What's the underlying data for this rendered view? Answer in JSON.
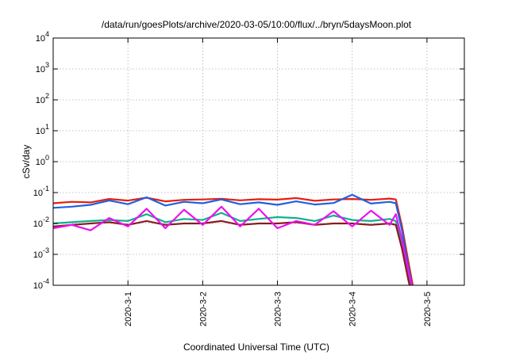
{
  "chart_data": {
    "type": "line",
    "title": "/data/run/goesPlots/archive/2020-03-05/10:00/flux/../bryn/5daysMoon.plot",
    "xlabel": "Coordinated Universal Time (UTC)",
    "ylabel": "cSv/day",
    "yscale": "log",
    "ylim": [
      0.0001,
      10000
    ],
    "xlim": [
      "2020-02-29 00:00",
      "2020-03-05 12:00"
    ],
    "x_ticks": [
      "2020-3-1",
      "2020-3-2",
      "2020-3-3",
      "2020-3-4",
      "2020-3-5"
    ],
    "y_ticks": [
      {
        "base": "10",
        "exp": "4"
      },
      {
        "base": "10",
        "exp": "3"
      },
      {
        "base": "10",
        "exp": "2"
      },
      {
        "base": "10",
        "exp": "1"
      },
      {
        "base": "10",
        "exp": "0"
      },
      {
        "base": "10",
        "exp": "-1"
      },
      {
        "base": "10",
        "exp": "-2"
      },
      {
        "base": "10",
        "exp": "-3"
      },
      {
        "base": "10",
        "exp": "-4"
      }
    ],
    "grid": true,
    "x": [
      "2020-02-29 00:00",
      "2020-02-29 06:00",
      "2020-02-29 12:00",
      "2020-02-29 18:00",
      "2020-03-01 00:00",
      "2020-03-01 06:00",
      "2020-03-01 12:00",
      "2020-03-01 18:00",
      "2020-03-02 00:00",
      "2020-03-02 06:00",
      "2020-03-02 12:00",
      "2020-03-02 18:00",
      "2020-03-03 00:00",
      "2020-03-03 06:00",
      "2020-03-03 12:00",
      "2020-03-03 18:00",
      "2020-03-04 00:00",
      "2020-03-04 06:00",
      "2020-03-04 12:00",
      "2020-03-04 14:00",
      "2020-03-04 16:00",
      "2020-03-04 18:00",
      "2020-03-04 20:00"
    ],
    "series": [
      {
        "color": "#e51e10",
        "values": [
          0.045,
          0.05,
          0.048,
          0.062,
          0.055,
          0.068,
          0.052,
          0.058,
          0.06,
          0.063,
          0.056,
          0.061,
          0.059,
          0.066,
          0.054,
          0.06,
          0.062,
          0.058,
          0.064,
          0.06,
          0.008,
          0.0006,
          5e-05
        ]
      },
      {
        "color": "#2060e0",
        "values": [
          0.032,
          0.035,
          0.04,
          0.055,
          0.042,
          0.07,
          0.038,
          0.05,
          0.045,
          0.06,
          0.042,
          0.048,
          0.04,
          0.052,
          0.041,
          0.046,
          0.085,
          0.044,
          0.05,
          0.045,
          0.006,
          0.0004,
          4e-05
        ]
      },
      {
        "color": "#10b090",
        "values": [
          0.01,
          0.011,
          0.012,
          0.013,
          0.012,
          0.02,
          0.011,
          0.014,
          0.013,
          0.022,
          0.012,
          0.014,
          0.016,
          0.015,
          0.012,
          0.018,
          0.013,
          0.012,
          0.014,
          0.012,
          0.002,
          0.0002,
          3e-05
        ]
      },
      {
        "color": "#8a1a20",
        "values": [
          0.008,
          0.009,
          0.01,
          0.011,
          0.009,
          0.012,
          0.009,
          0.01,
          0.01,
          0.012,
          0.009,
          0.01,
          0.01,
          0.011,
          0.009,
          0.01,
          0.01,
          0.009,
          0.01,
          0.009,
          0.0015,
          0.00015,
          2e-05
        ]
      },
      {
        "color": "#ee10ee",
        "values": [
          0.007,
          0.009,
          0.006,
          0.015,
          0.008,
          0.03,
          0.007,
          0.028,
          0.009,
          0.035,
          0.008,
          0.03,
          0.007,
          0.012,
          0.009,
          0.025,
          0.008,
          0.026,
          0.009,
          0.02,
          0.003,
          0.0003,
          4e-05
        ]
      }
    ]
  }
}
